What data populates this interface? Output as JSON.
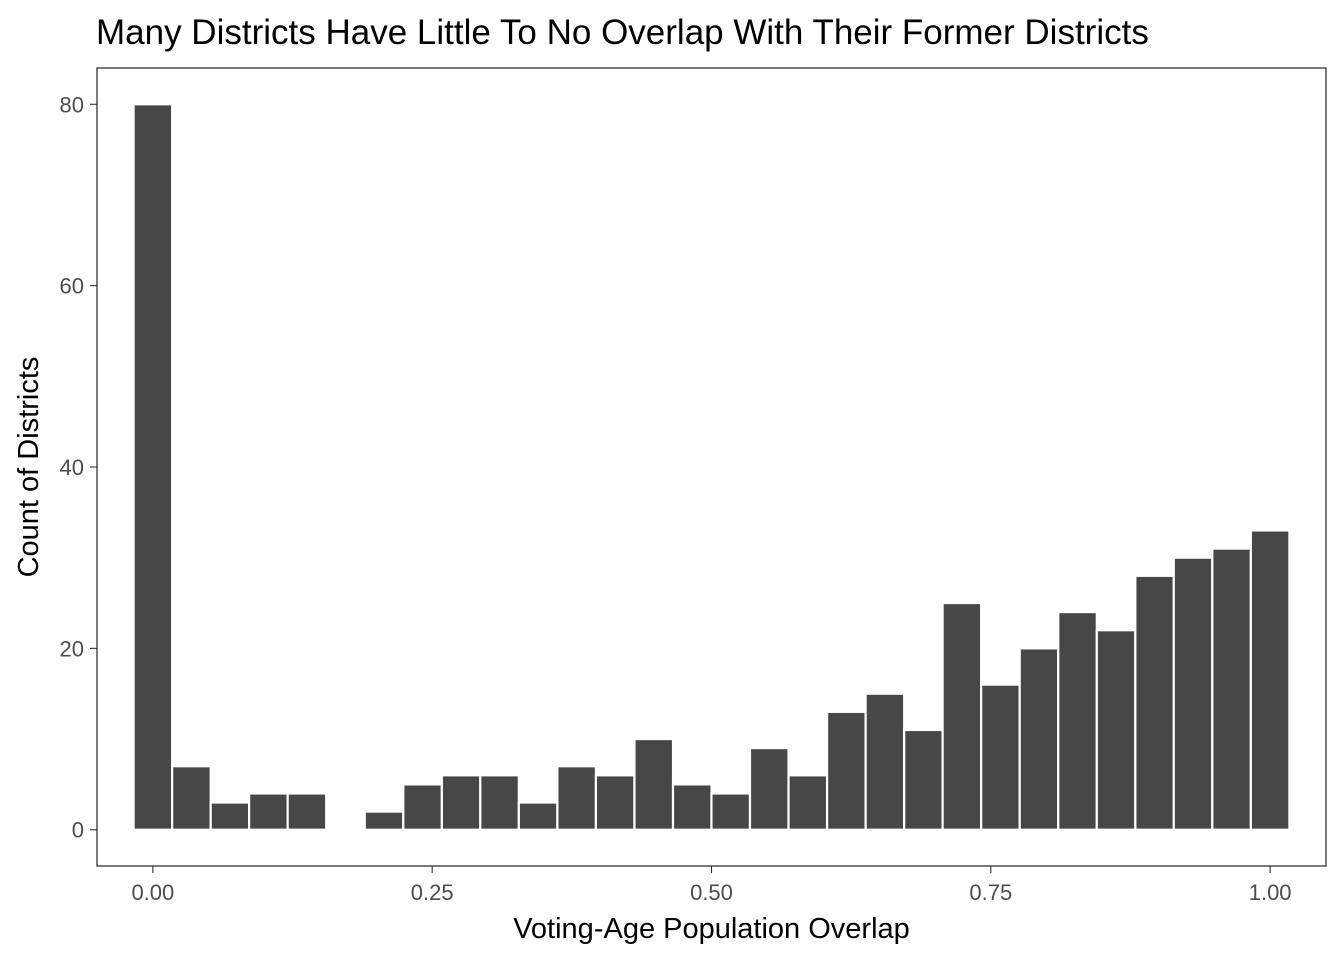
{
  "chart_data": {
    "type": "bar",
    "title": "Many Districts Have Little To No Overlap With Their Former Districts",
    "xlabel": "Voting-Age Population Overlap",
    "ylabel": "Count of Districts",
    "xlim": [
      -0.05,
      1.05
    ],
    "ylim": [
      -4,
      84
    ],
    "x_ticks": [
      0,
      0.25,
      0.5,
      0.75,
      1
    ],
    "x_tick_labels": [
      "0.00",
      "0.25",
      "0.50",
      "0.75",
      "1.00"
    ],
    "y_ticks": [
      0,
      20,
      40,
      60,
      80
    ],
    "y_tick_labels": [
      "0",
      "20",
      "40",
      "60",
      "80"
    ],
    "bin_width": 0.0345,
    "bin_centers": [
      0.0,
      0.0345,
      0.069,
      0.1034,
      0.1379,
      0.1724,
      0.2069,
      0.2414,
      0.2759,
      0.3103,
      0.3448,
      0.3793,
      0.4138,
      0.4483,
      0.4828,
      0.5172,
      0.5517,
      0.5862,
      0.6207,
      0.6552,
      0.6897,
      0.7241,
      0.7586,
      0.7931,
      0.8276,
      0.8621,
      0.8966,
      0.931,
      0.9655,
      1.0
    ],
    "values": [
      80,
      7,
      3,
      4,
      4,
      0,
      2,
      5,
      6,
      6,
      3,
      7,
      6,
      10,
      5,
      4,
      9,
      6,
      13,
      15,
      11,
      25,
      16,
      20,
      24,
      22,
      28,
      30,
      31,
      33
    ],
    "bar_color": "#474747",
    "panel_border_color": "#333333",
    "background_color": "#ffffff",
    "grid": false,
    "legend": "none"
  }
}
